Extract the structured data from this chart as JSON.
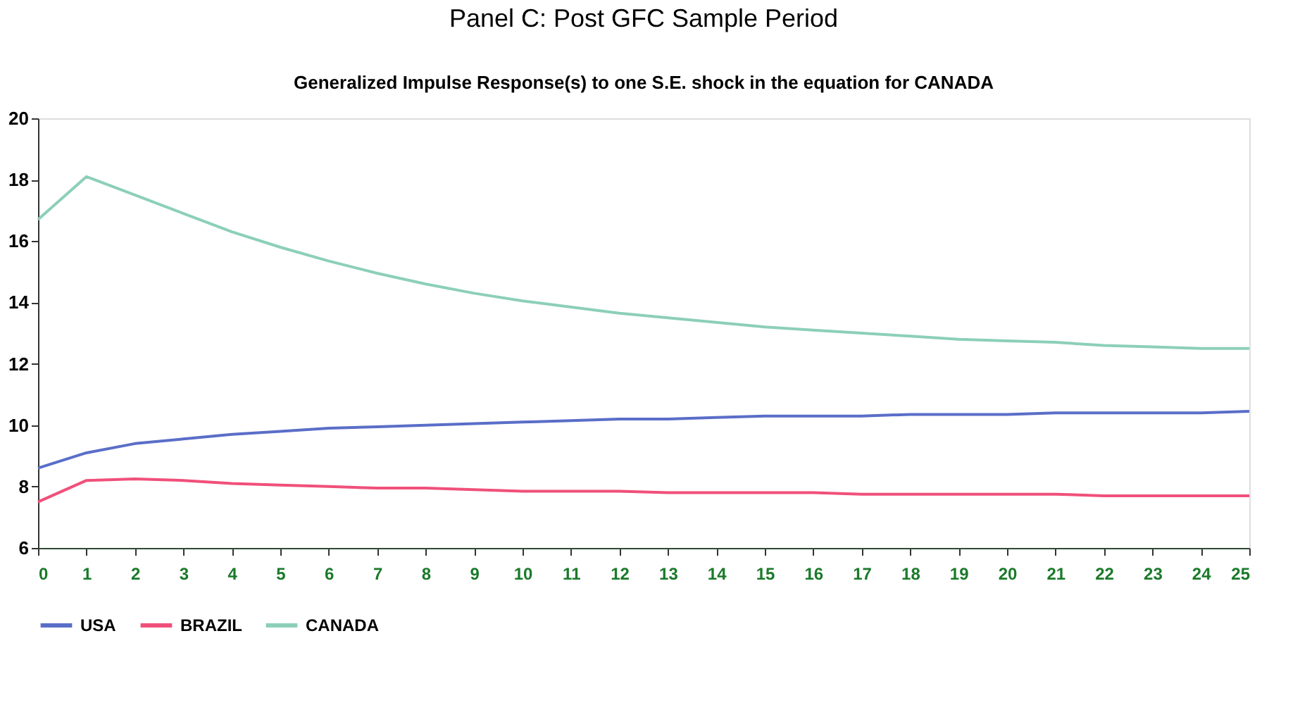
{
  "chart_data": {
    "type": "line",
    "title": "Panel C: Post GFC Sample Period",
    "subtitle": "Generalized Impulse Response(s) to one S.E. shock in the equation for CANADA",
    "x": [
      0,
      1,
      2,
      3,
      4,
      5,
      6,
      7,
      8,
      9,
      10,
      11,
      12,
      13,
      14,
      15,
      16,
      17,
      18,
      19,
      20,
      21,
      22,
      23,
      24,
      25
    ],
    "series": [
      {
        "name": "USA",
        "color": "#5a6ec8",
        "values": [
          8.6,
          9.1,
          9.4,
          9.55,
          9.7,
          9.8,
          9.9,
          9.95,
          10.0,
          10.05,
          10.1,
          10.15,
          10.2,
          10.2,
          10.25,
          10.3,
          10.3,
          10.3,
          10.35,
          10.35,
          10.35,
          10.4,
          10.4,
          10.4,
          10.4,
          10.45
        ]
      },
      {
        "name": "BRAZIL",
        "color": "#f0507a",
        "values": [
          7.5,
          8.2,
          8.25,
          8.2,
          8.1,
          8.05,
          8.0,
          7.95,
          7.95,
          7.9,
          7.85,
          7.85,
          7.85,
          7.8,
          7.8,
          7.8,
          7.8,
          7.75,
          7.75,
          7.75,
          7.75,
          7.75,
          7.7,
          7.7,
          7.7,
          7.7
        ]
      },
      {
        "name": "CANADA",
        "color": "#8ccfb8",
        "values": [
          16.7,
          18.1,
          17.5,
          16.9,
          16.3,
          15.8,
          15.35,
          14.95,
          14.6,
          14.3,
          14.05,
          13.85,
          13.65,
          13.5,
          13.35,
          13.2,
          13.1,
          13.0,
          12.9,
          12.8,
          12.75,
          12.7,
          12.6,
          12.55,
          12.5,
          12.5
        ]
      }
    ],
    "xlim": [
      0,
      25
    ],
    "xticks": [
      0,
      1,
      2,
      3,
      4,
      5,
      6,
      7,
      8,
      9,
      10,
      11,
      12,
      13,
      14,
      15,
      16,
      17,
      18,
      19,
      20,
      21,
      22,
      23,
      24,
      25
    ],
    "ylim": [
      6,
      20
    ],
    "yticks": [
      6,
      8,
      10,
      12,
      14,
      16,
      18,
      20
    ],
    "grid": false,
    "legend": "bottom",
    "marker": "none",
    "line_style": "solid"
  }
}
